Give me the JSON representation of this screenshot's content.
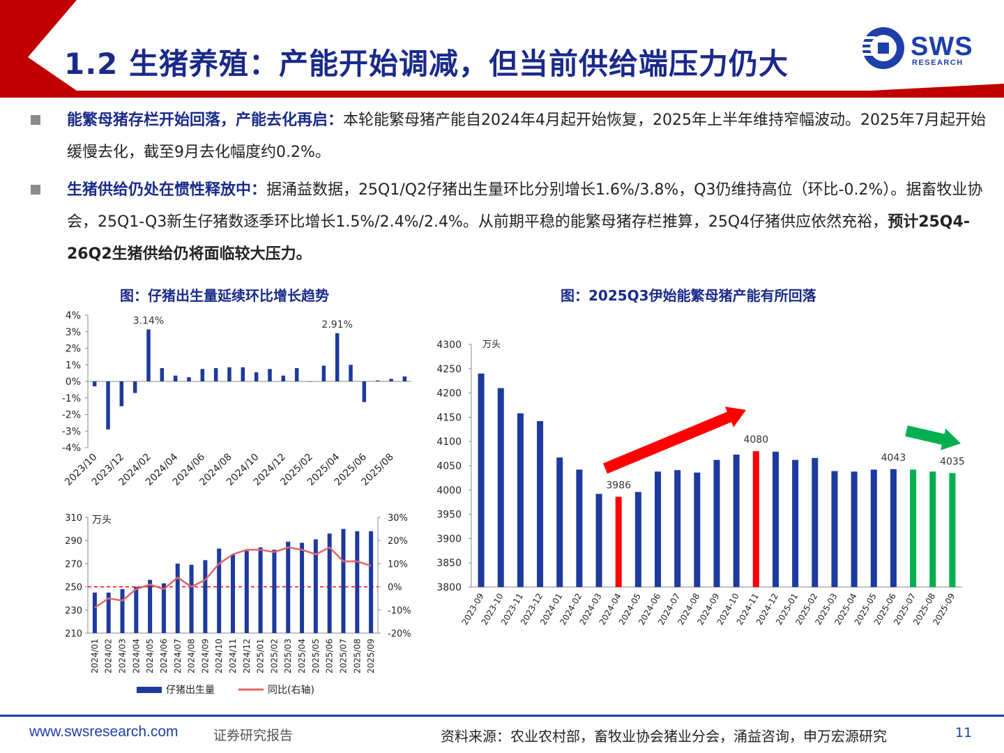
{
  "header": {
    "title": "1.2 生猪养殖：产能开始调减，但当前供给端压力仍大",
    "logo_text": "SWS",
    "logo_sub": "RESEARCH"
  },
  "colors": {
    "navy": "#1d3a9e",
    "red": "#ff0000",
    "green": "#00b050",
    "line": "#e06666",
    "banner": "#c00000"
  },
  "bullets": [
    {
      "lead": "能繁母猪存栏开始回落，产能去化再启：",
      "text": "本轮能繁母猪产能自2024年4月起开始恢复，2025年上半年维持窄幅波动。2025年7月起开始缓慢去化，截至9月去化幅度约0.2%。",
      "emphasis": ""
    },
    {
      "lead": "生猪供给仍处在惯性释放中：",
      "text": "据涌益数据，25Q1/Q2仔猪出生量环比分别增长1.6%/3.8%，Q3仍维持高位（环比-0.2%）。据畜牧业协会，25Q1-Q3新生仔猪数逐季环比增长1.5%/2.4%/2.4%。从前期平稳的能繁母猪存栏推算，25Q4仔猪供应依然充裕，",
      "emphasis": "预计25Q4-26Q2生猪供给仍将面临较大压力。"
    }
  ],
  "chart_data": [
    {
      "id": "piglet-mom",
      "type": "bar",
      "title": "图：仔猪出生量延续环比增长趋势",
      "unit": "%",
      "ylim": [
        -4,
        4
      ],
      "yticks": [
        4,
        3,
        2,
        1,
        0,
        -1,
        -2,
        -3,
        -4
      ],
      "ytick_labels": [
        "4%",
        "3%",
        "2%",
        "1%",
        "0%",
        "-1%",
        "-2%",
        "-3%",
        "-4%"
      ],
      "xtick_labels": [
        "2023/10",
        "2023/12",
        "2024/02",
        "2024/04",
        "2024/06",
        "2024/08",
        "2024/10",
        "2024/12",
        "2025/02",
        "2025/04",
        "2025/06",
        "2025/08"
      ],
      "values": [
        -0.3,
        -2.9,
        -1.5,
        -0.7,
        3.14,
        0.8,
        0.35,
        0.25,
        0.75,
        0.8,
        0.85,
        0.85,
        0.55,
        0.75,
        0.35,
        0.8,
        0.0,
        0.95,
        2.91,
        1.0,
        -1.25,
        0.05,
        0.15,
        0.3
      ],
      "data_labels": [
        {
          "index": 4,
          "text": "3.14%"
        },
        {
          "index": 18,
          "text": "2.91%"
        }
      ]
    },
    {
      "id": "piglet-output",
      "type": "bar",
      "unit_label": "万头",
      "categories": [
        "2024/01",
        "2024/02",
        "2024/03",
        "2024/04",
        "2024/05",
        "2024/06",
        "2024/07",
        "2024/08",
        "2024/09",
        "2024/10",
        "2024/11",
        "2024/12",
        "2025/01",
        "2025/02",
        "2025/03",
        "2025/04",
        "2025/05",
        "2025/06",
        "2025/07",
        "2025/08",
        "2025/09"
      ],
      "ylim": [
        210,
        310
      ],
      "yticks": [
        210,
        230,
        250,
        270,
        290,
        310
      ],
      "y2lim": [
        -20,
        30
      ],
      "y2ticks": [
        -20,
        -10,
        0,
        10,
        20,
        30
      ],
      "y2tick_labels": [
        "-20%",
        "-10%",
        "0%",
        "10%",
        "20%",
        "30%"
      ],
      "series": [
        {
          "name": "仔猪出生量",
          "type": "bar",
          "values": [
            245,
            245,
            248,
            250,
            256,
            253,
            270,
            269,
            273,
            283,
            278,
            281,
            284,
            282,
            289,
            288,
            291,
            296,
            300,
            298,
            298
          ]
        },
        {
          "name": "同比(右轴)",
          "type": "line",
          "axis": "right",
          "values": [
            -9,
            -5,
            -6,
            -1,
            1,
            -1,
            4,
            0,
            3,
            10,
            14,
            16,
            16,
            15,
            17,
            16,
            14,
            17,
            11,
            11,
            9
          ]
        }
      ]
    },
    {
      "id": "sow-inventory",
      "type": "bar",
      "title": "图：2025Q3伊始能繁母猪产能有所回落",
      "unit_label": "万头",
      "ylim": [
        3800,
        4300
      ],
      "yticks": [
        3800,
        3850,
        3900,
        3950,
        4000,
        4050,
        4100,
        4150,
        4200,
        4250,
        4300
      ],
      "categories": [
        "2023-09",
        "2023-10",
        "2023-11",
        "2023-12",
        "2024-01",
        "2024-02",
        "2024-03",
        "2024-04",
        "2024-05",
        "2024-06",
        "2024-07",
        "2024-08",
        "2024-09",
        "2024-10",
        "2024-11",
        "2024-12",
        "2025-01",
        "2025-02",
        "2025-03",
        "2025-04",
        "2025-05",
        "2025-06",
        "2025-07",
        "2025-08",
        "2025-09"
      ],
      "values": [
        4240,
        4210,
        4158,
        4142,
        4067,
        4042,
        3992,
        3986,
        3996,
        4038,
        4041,
        4036,
        4062,
        4073,
        4080,
        4079,
        4062,
        4066,
        4039,
        4038,
        4042,
        4043,
        4042,
        4038,
        4035
      ],
      "bar_colors": [
        "navy",
        "navy",
        "navy",
        "navy",
        "navy",
        "navy",
        "navy",
        "red",
        "navy",
        "navy",
        "navy",
        "navy",
        "navy",
        "navy",
        "red",
        "navy",
        "navy",
        "navy",
        "navy",
        "navy",
        "navy",
        "navy",
        "green",
        "green",
        "green"
      ],
      "data_labels": [
        {
          "index": 7,
          "text": "3986"
        },
        {
          "index": 14,
          "text": "4080"
        },
        {
          "index": 21,
          "text": "4043"
        },
        {
          "index": 24,
          "text": "4035"
        }
      ]
    }
  ],
  "footer": {
    "site": "www.swsresearch.com",
    "doc_type": "证券研究报告",
    "source": "资料来源：农业农村部，畜牧业协会猪业分会，涌益咨询，申万宏源研究",
    "page": "11"
  }
}
